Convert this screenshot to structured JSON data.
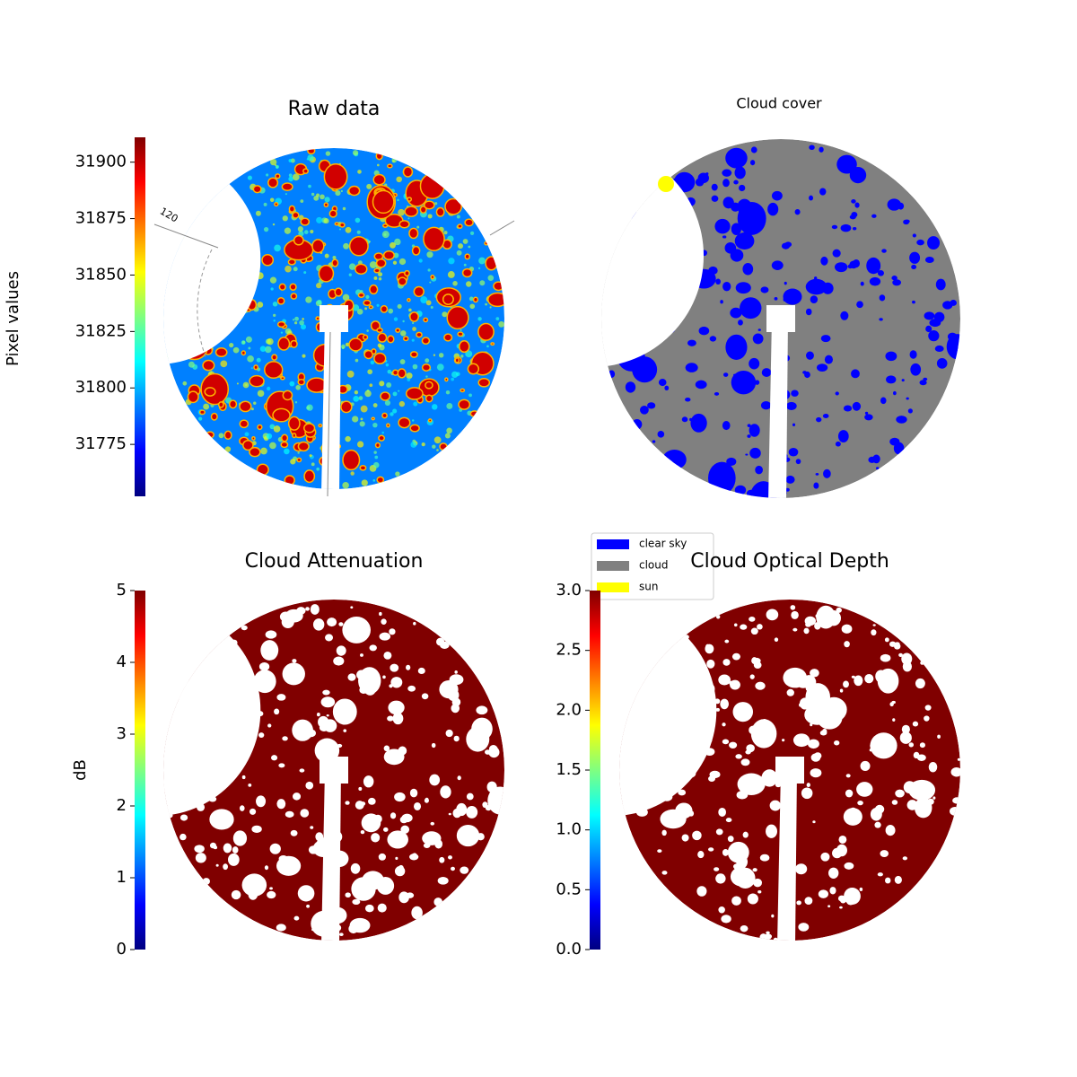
{
  "chart_data": [
    {
      "type": "image",
      "title": "Raw data",
      "annotation": "120",
      "colorbar": {
        "label": "Pixel values",
        "colormap": "jet",
        "lim": [
          31752,
          31911
        ],
        "ticks": [
          31775,
          31800,
          31825,
          31850,
          31875,
          31900
        ]
      }
    },
    {
      "type": "image",
      "title": "Cloud cover",
      "series": [
        {
          "name": "clear sky",
          "color": "#0000ff"
        },
        {
          "name": "cloud",
          "color": "#808080"
        },
        {
          "name": "sun",
          "color": "#ffff00"
        }
      ]
    },
    {
      "type": "image",
      "title": "Cloud Attenuation",
      "colorbar": {
        "label": "dB",
        "colormap": "jet",
        "lim": [
          0,
          5
        ],
        "ticks": [
          0,
          1,
          2,
          3,
          4,
          5
        ]
      }
    },
    {
      "type": "image",
      "title": "Cloud Optical Depth",
      "colorbar": {
        "colormap": "jet",
        "lim": [
          0,
          3
        ],
        "ticks": [
          {
            "value": 0,
            "label": "0.0"
          },
          0.5,
          {
            "value": 1,
            "label": "1.0"
          },
          1.5,
          {
            "value": 2,
            "label": "2.0"
          },
          2.5,
          {
            "value": 3,
            "label": "3.0"
          }
        ]
      }
    }
  ]
}
